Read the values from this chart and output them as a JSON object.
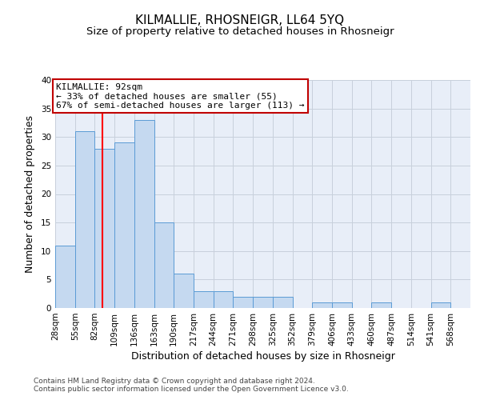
{
  "title": "KILMALLIE, RHOSNEIGR, LL64 5YQ",
  "subtitle": "Size of property relative to detached houses in Rhosneigr",
  "xlabel": "Distribution of detached houses by size in Rhosneigr",
  "ylabel": "Number of detached properties",
  "bin_labels": [
    "28sqm",
    "55sqm",
    "82sqm",
    "109sqm",
    "136sqm",
    "163sqm",
    "190sqm",
    "217sqm",
    "244sqm",
    "271sqm",
    "298sqm",
    "325sqm",
    "352sqm",
    "379sqm",
    "406sqm",
    "433sqm",
    "460sqm",
    "487sqm",
    "514sqm",
    "541sqm",
    "568sqm"
  ],
  "bar_values": [
    11,
    31,
    28,
    29,
    33,
    15,
    6,
    3,
    3,
    2,
    2,
    2,
    0,
    1,
    1,
    0,
    1,
    0,
    0,
    1,
    0
  ],
  "bar_color": "#c5d9f0",
  "bar_edge_color": "#5b9bd5",
  "annotation_text": "KILMALLIE: 92sqm\n← 33% of detached houses are smaller (55)\n67% of semi-detached houses are larger (113) →",
  "annotation_box_color": "#ffffff",
  "annotation_box_edge": "#c00000",
  "vline_color": "#ff0000",
  "ylim": [
    0,
    40
  ],
  "footer1": "Contains HM Land Registry data © Crown copyright and database right 2024.",
  "footer2": "Contains public sector information licensed under the Open Government Licence v3.0.",
  "background_color": "#ffffff",
  "plot_bg_color": "#e8eef8",
  "grid_color": "#c8d0dc",
  "title_fontsize": 11,
  "subtitle_fontsize": 9.5,
  "label_fontsize": 9,
  "tick_fontsize": 7.5,
  "footer_fontsize": 6.5,
  "annotation_fontsize": 8
}
